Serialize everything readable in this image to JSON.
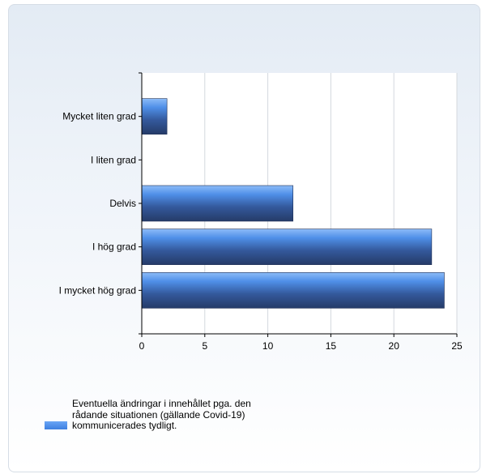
{
  "chart_data": {
    "type": "bar",
    "orientation": "horizontal",
    "categories": [
      "Mycket liten grad",
      "I liten grad",
      "Delvis",
      "I hög grad",
      "I mycket hög grad"
    ],
    "series": [
      {
        "name": "Eventuella ändringar i innehållet pga. den rådande situationen (gällande Covid-19) kommunicerades tydligt.",
        "values": [
          2,
          0,
          12,
          23,
          24
        ]
      }
    ],
    "xticks": [
      0,
      5,
      10,
      15,
      20,
      25
    ],
    "xlim": [
      0,
      25
    ],
    "grid": true,
    "legend_position": "bottom-left",
    "bar_color": "#4f8fe8",
    "bar_dark_color": "#2a3f6e"
  }
}
